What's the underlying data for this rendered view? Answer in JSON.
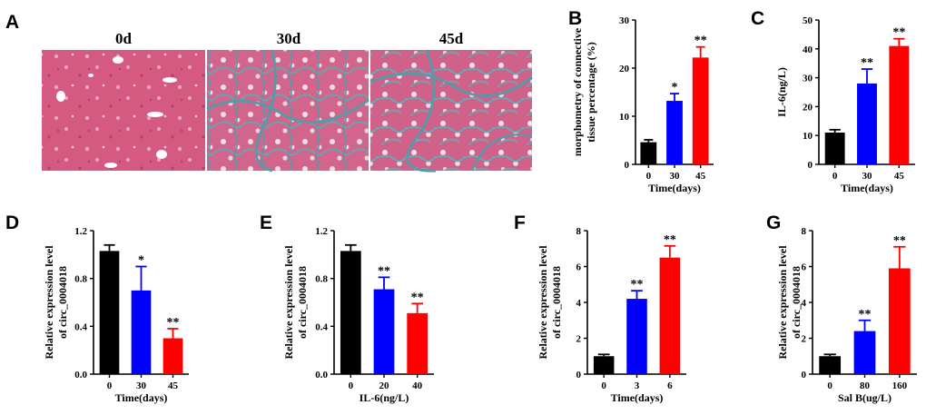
{
  "panel_labels": {
    "A": "A",
    "B": "B",
    "C": "C",
    "D": "D",
    "E": "E",
    "F": "F",
    "G": "G"
  },
  "micrographs": [
    {
      "title": "0d",
      "stain_colors": [
        "#d2567d",
        "#e8a4b8",
        "#ffffff"
      ]
    },
    {
      "title": "30d",
      "stain_colors": [
        "#cc5f86",
        "#6aa3ae",
        "#f0dce4"
      ]
    },
    {
      "title": "45d",
      "stain_colors": [
        "#cd5c85",
        "#6fa5b4",
        "#f2dde6"
      ]
    }
  ],
  "bar_colors": [
    "#000000",
    "#0000ff",
    "#ff0000"
  ],
  "chart_data": [
    {
      "panel": "B",
      "type": "bar",
      "categories": [
        "0",
        "30",
        "45"
      ],
      "values": [
        4.6,
        13.2,
        22.2
      ],
      "errors": [
        0.5,
        1.5,
        2.2
      ],
      "significance": [
        "",
        "*",
        "**"
      ],
      "ylabel": "morphometry of connective tissue percentage (%)",
      "ylabel_lines": [
        "morphometry of connective",
        "tissue percentage (%)"
      ],
      "xlabel": "Time(days)",
      "ylim": [
        0,
        30
      ],
      "yticks": [
        "0",
        "10",
        "20",
        "30"
      ]
    },
    {
      "panel": "C",
      "type": "bar",
      "categories": [
        "0",
        "30",
        "45"
      ],
      "values": [
        11,
        28,
        41
      ],
      "errors": [
        1,
        5,
        2.5
      ],
      "significance": [
        "",
        "**",
        "**"
      ],
      "ylabel": "IL-6(ng/L)",
      "ylabel_lines": [
        "IL-6(ng/L)"
      ],
      "xlabel": "Time(days)",
      "ylim": [
        0,
        50
      ],
      "yticks": [
        "0",
        "10",
        "20",
        "30",
        "40",
        "50"
      ]
    },
    {
      "panel": "D",
      "type": "bar",
      "categories": [
        "0",
        "30",
        "45"
      ],
      "values": [
        1.03,
        0.7,
        0.3
      ],
      "errors": [
        0.05,
        0.2,
        0.08
      ],
      "significance": [
        "",
        "*",
        "**"
      ],
      "ylabel": "Relative expression level of circ_0004018",
      "ylabel_lines": [
        "Relative expression level",
        "of circ_0004018"
      ],
      "xlabel": "Time(days)",
      "ylim": [
        0,
        1.2
      ],
      "yticks": [
        "0.0",
        "0.4",
        "0.8",
        "1.2"
      ]
    },
    {
      "panel": "E",
      "type": "bar",
      "categories": [
        "0",
        "20",
        "40"
      ],
      "values": [
        1.03,
        0.71,
        0.51
      ],
      "errors": [
        0.05,
        0.1,
        0.08
      ],
      "significance": [
        "",
        "**",
        "**"
      ],
      "ylabel": "Relative expression level of circ_0004018",
      "ylabel_lines": [
        "Relative expression level",
        "of circ_0004018"
      ],
      "xlabel": "IL-6(ng/L)",
      "ylim": [
        0,
        1.2
      ],
      "yticks": [
        "0.0",
        "0.4",
        "0.8",
        "1.2"
      ]
    },
    {
      "panel": "F",
      "type": "bar",
      "categories": [
        "0",
        "3",
        "6"
      ],
      "values": [
        1.0,
        4.2,
        6.5
      ],
      "errors": [
        0.1,
        0.45,
        0.65
      ],
      "significance": [
        "",
        "**",
        "**"
      ],
      "ylabel": "Relative expression level of circ_0004018",
      "ylabel_lines": [
        "Relative expression level",
        "of circ_0004018"
      ],
      "xlabel": "Time(days)",
      "ylim": [
        0,
        8
      ],
      "yticks": [
        "0",
        "2",
        "4",
        "6",
        "8"
      ]
    },
    {
      "panel": "G",
      "type": "bar",
      "categories": [
        "0",
        "80",
        "160"
      ],
      "values": [
        1.0,
        2.4,
        5.9
      ],
      "errors": [
        0.1,
        0.6,
        1.2
      ],
      "significance": [
        "",
        "**",
        "**"
      ],
      "ylabel": "Relative expression level of circ_0004018",
      "ylabel_lines": [
        "Relative expression level",
        "of circ_0004018"
      ],
      "xlabel": "Sal B(ug/L)",
      "ylim": [
        0,
        8
      ],
      "yticks": [
        "0",
        "2",
        "4",
        "6",
        "8"
      ]
    }
  ]
}
